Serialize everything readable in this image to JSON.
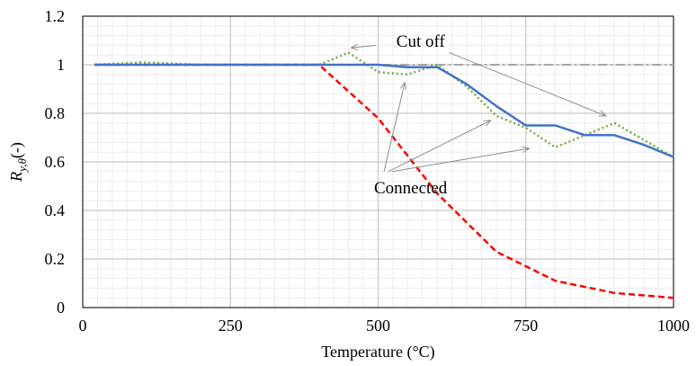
{
  "chart_data": {
    "type": "line",
    "xlabel": "Temperature (°C)",
    "ylabel": {
      "base": "R",
      "sub": "y,θ",
      "suffix": "(-)"
    },
    "xlim": [
      0,
      1000
    ],
    "ylim": [
      0,
      1.2
    ],
    "x_ticks": [
      0,
      250,
      500,
      750,
      1000
    ],
    "x_tick_labels": [
      "0",
      "250",
      "500",
      "750",
      "1000"
    ],
    "y_ticks": [
      0,
      0.2,
      0.4,
      0.6,
      0.8,
      1,
      1.2
    ],
    "y_tick_labels": [
      "0",
      "0.2",
      "0.4",
      "0.6",
      "0.8",
      "1",
      "1.2"
    ],
    "grid": {
      "major_x": true,
      "minor_x_step": 25,
      "minor_y_step": 0.04
    },
    "series": [
      {
        "color": "#a6a6a6",
        "style": "dash-dot",
        "x": [
          20,
          100,
          200,
          300,
          400,
          500,
          600,
          700,
          800,
          900,
          1000
        ],
        "y": [
          1,
          1,
          1,
          1,
          1,
          1,
          1,
          1,
          1,
          1,
          1
        ]
      },
      {
        "color": "#ff0000",
        "style": "dashed",
        "x": [
          20,
          100,
          200,
          300,
          400,
          500,
          600,
          700,
          800,
          900,
          1000
        ],
        "y": [
          1,
          1,
          1,
          1,
          1,
          0.78,
          0.47,
          0.23,
          0.11,
          0.06,
          0.04
        ]
      },
      {
        "color": "#70ad47",
        "style": "dotted",
        "x": [
          20,
          100,
          200,
          300,
          400,
          450,
          500,
          550,
          600,
          650,
          700,
          750,
          800,
          850,
          900,
          950,
          1000
        ],
        "y": [
          1,
          1.01,
          1,
          1,
          1,
          1.05,
          0.97,
          0.96,
          1,
          0.91,
          0.79,
          0.74,
          0.66,
          0.71,
          0.76,
          0.69,
          0.62
        ]
      },
      {
        "color": "#4472c4",
        "style": "solid",
        "x": [
          20,
          100,
          200,
          300,
          400,
          450,
          500,
          550,
          600,
          650,
          700,
          750,
          800,
          850,
          900,
          950,
          1000
        ],
        "y": [
          1,
          1,
          1,
          1,
          1,
          1,
          1,
          0.99,
          0.99,
          0.92,
          0.83,
          0.75,
          0.75,
          0.71,
          0.71,
          0.67,
          0.62
        ]
      }
    ],
    "annotations": [
      {
        "text": "Cut off",
        "text_pos": [
          572,
          1.075
        ],
        "anchor": "middle",
        "arrows": [
          {
            "from": [
              496,
              1.08
            ],
            "to": [
              455,
              1.07
            ]
          },
          {
            "from": [
              620,
              1.05
            ],
            "to": [
              885,
              0.79
            ]
          }
        ]
      },
      {
        "text": "Connected",
        "text_pos": [
          555,
          0.47
        ],
        "anchor": "middle",
        "arrows": [
          {
            "from": [
              510,
              0.56
            ],
            "to": [
              545,
              0.925
            ]
          },
          {
            "from": [
              517,
              0.56
            ],
            "to": [
              690,
              0.77
            ]
          },
          {
            "from": [
              524,
              0.56
            ],
            "to": [
              755,
              0.655
            ]
          }
        ]
      }
    ]
  }
}
